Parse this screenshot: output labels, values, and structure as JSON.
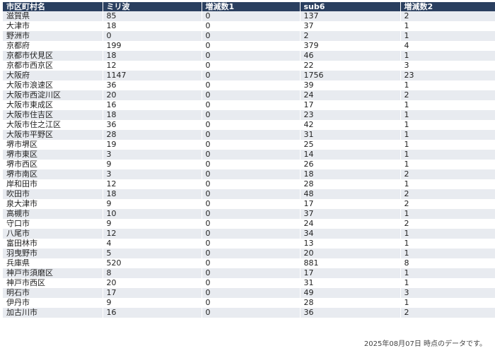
{
  "table": {
    "headers": [
      "市区町村名",
      "ミリ波",
      "増減数1",
      "sub6",
      "増減数2"
    ],
    "rows": [
      [
        "滋賀県",
        "85",
        "0",
        "137",
        "2"
      ],
      [
        "大津市",
        "18",
        "0",
        "37",
        "1"
      ],
      [
        "野洲市",
        "0",
        "0",
        "2",
        "1"
      ],
      [
        "京都府",
        "199",
        "0",
        "379",
        "4"
      ],
      [
        "京都市伏見区",
        "18",
        "0",
        "46",
        "1"
      ],
      [
        "京都市西京区",
        "12",
        "0",
        "22",
        "3"
      ],
      [
        "大阪府",
        "1147",
        "0",
        "1756",
        "23"
      ],
      [
        "大阪市浪速区",
        "36",
        "0",
        "39",
        "1"
      ],
      [
        "大阪市西淀川区",
        "20",
        "0",
        "24",
        "2"
      ],
      [
        "大阪市東成区",
        "16",
        "0",
        "17",
        "1"
      ],
      [
        "大阪市住吉区",
        "18",
        "0",
        "23",
        "1"
      ],
      [
        "大阪市住之江区",
        "36",
        "0",
        "42",
        "1"
      ],
      [
        "大阪市平野区",
        "28",
        "0",
        "31",
        "1"
      ],
      [
        "堺市堺区",
        "19",
        "0",
        "25",
        "1"
      ],
      [
        "堺市東区",
        "3",
        "0",
        "14",
        "1"
      ],
      [
        "堺市西区",
        "9",
        "0",
        "26",
        "1"
      ],
      [
        "堺市南区",
        "3",
        "0",
        "18",
        "2"
      ],
      [
        "岸和田市",
        "12",
        "0",
        "28",
        "1"
      ],
      [
        "吹田市",
        "18",
        "0",
        "48",
        "2"
      ],
      [
        "泉大津市",
        "9",
        "0",
        "17",
        "2"
      ],
      [
        "高槻市",
        "10",
        "0",
        "37",
        "1"
      ],
      [
        "守口市",
        "9",
        "0",
        "24",
        "2"
      ],
      [
        "八尾市",
        "12",
        "0",
        "34",
        "1"
      ],
      [
        "富田林市",
        "4",
        "0",
        "13",
        "1"
      ],
      [
        "羽曳野市",
        "5",
        "0",
        "20",
        "1"
      ],
      [
        "兵庫県",
        "520",
        "0",
        "881",
        "8"
      ],
      [
        "神戸市須磨区",
        "8",
        "0",
        "17",
        "1"
      ],
      [
        "神戸市西区",
        "20",
        "0",
        "31",
        "1"
      ],
      [
        "明石市",
        "17",
        "0",
        "49",
        "3"
      ],
      [
        "伊丹市",
        "9",
        "0",
        "28",
        "1"
      ],
      [
        "加古川市",
        "16",
        "0",
        "36",
        "2"
      ]
    ]
  },
  "footnote": "2025年08月07日 時点のデータです。",
  "colors": {
    "header_bg": "#2a3f5f",
    "header_text": "#ffffff",
    "row_odd": "#e8ebf0",
    "row_even": "#ffffff"
  }
}
